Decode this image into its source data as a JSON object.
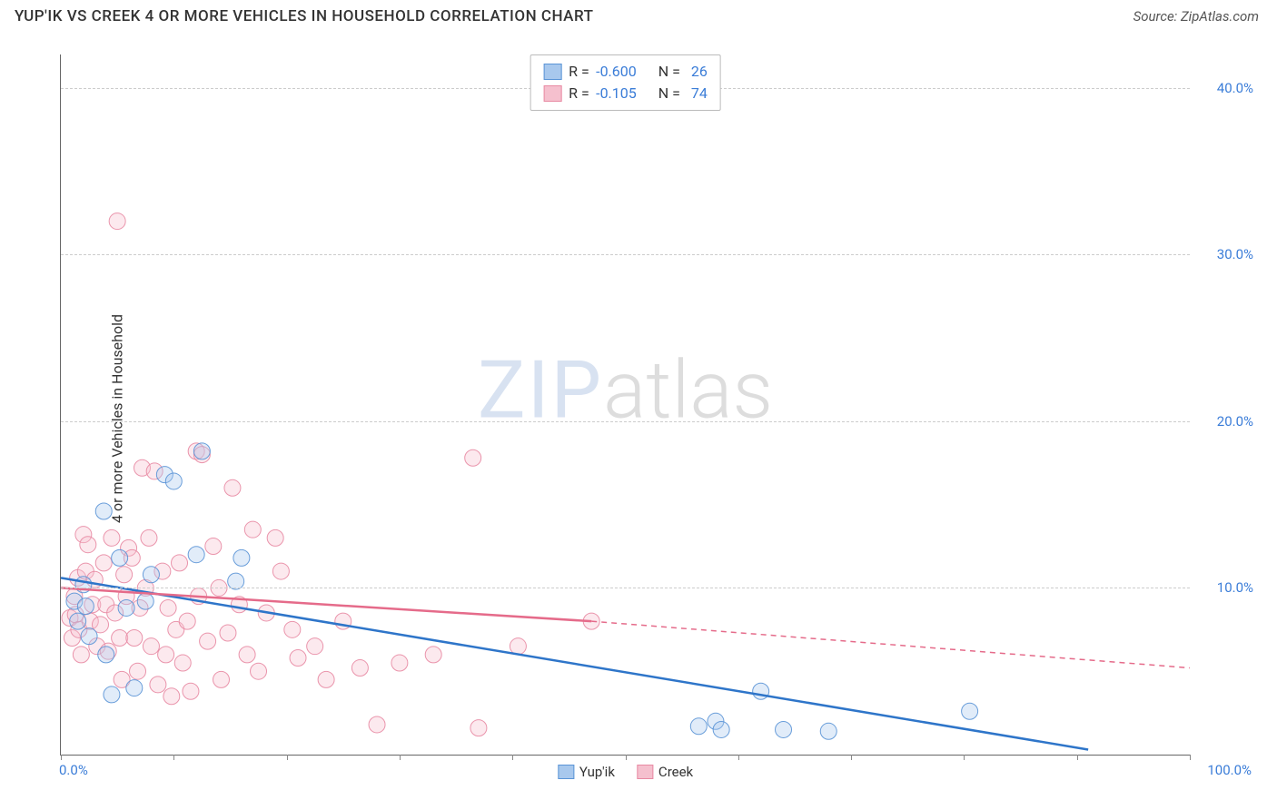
{
  "header": {
    "title": "YUP'IK VS CREEK 4 OR MORE VEHICLES IN HOUSEHOLD CORRELATION CHART",
    "source_prefix": "Source: ",
    "source_name": "ZipAtlas.com"
  },
  "chart": {
    "type": "scatter",
    "ylabel": "4 or more Vehicles in Household",
    "xlim": [
      0,
      100
    ],
    "ylim": [
      0,
      42
    ],
    "yticks": [
      10,
      20,
      30,
      40
    ],
    "ytick_labels": [
      "10.0%",
      "20.0%",
      "30.0%",
      "40.0%"
    ],
    "xticks": [
      0,
      10,
      20,
      30,
      40,
      50,
      60,
      70,
      80,
      90,
      100
    ],
    "xtick_labels_left": "0.0%",
    "xtick_labels_right": "100.0%",
    "background_color": "#ffffff",
    "grid_color": "#cccccc",
    "axis_color": "#666666",
    "marker_radius": 9,
    "marker_opacity": 0.35,
    "marker_stroke_opacity": 0.9,
    "line_width": 2.5,
    "series": [
      {
        "name": "Yup'ik",
        "color_fill": "#a8c8ed",
        "color_stroke": "#5a94d6",
        "line_color": "#2e75c9",
        "R": "-0.600",
        "N": "26",
        "regression": {
          "x1": 0,
          "y1": 10.6,
          "x2": 91,
          "y2": 0.3
        },
        "regression_dashed": null,
        "points": [
          [
            1.2,
            9.2
          ],
          [
            1.5,
            8.0
          ],
          [
            2.0,
            10.2
          ],
          [
            2.2,
            8.9
          ],
          [
            2.5,
            7.1
          ],
          [
            3.8,
            14.6
          ],
          [
            4.0,
            6.0
          ],
          [
            4.5,
            3.6
          ],
          [
            5.2,
            11.8
          ],
          [
            5.8,
            8.8
          ],
          [
            6.5,
            4.0
          ],
          [
            7.5,
            9.2
          ],
          [
            8.0,
            10.8
          ],
          [
            9.2,
            16.8
          ],
          [
            10.0,
            16.4
          ],
          [
            12.0,
            12.0
          ],
          [
            12.5,
            18.2
          ],
          [
            15.5,
            10.4
          ],
          [
            16.0,
            11.8
          ],
          [
            56.5,
            1.7
          ],
          [
            58.0,
            2.0
          ],
          [
            58.5,
            1.5
          ],
          [
            62.0,
            3.8
          ],
          [
            64.0,
            1.5
          ],
          [
            68.0,
            1.4
          ],
          [
            80.5,
            2.6
          ]
        ]
      },
      {
        "name": "Creek",
        "color_fill": "#f5c0ce",
        "color_stroke": "#e88aa3",
        "line_color": "#e56b8a",
        "R": "-0.105",
        "N": "74",
        "regression": {
          "x1": 0,
          "y1": 10.0,
          "x2": 47,
          "y2": 8.0
        },
        "regression_dashed": {
          "x1": 47,
          "y1": 8.0,
          "x2": 100,
          "y2": 5.2
        },
        "points": [
          [
            0.8,
            8.2
          ],
          [
            1.0,
            7.0
          ],
          [
            1.2,
            9.5
          ],
          [
            1.3,
            8.4
          ],
          [
            1.5,
            10.6
          ],
          [
            1.6,
            7.5
          ],
          [
            1.8,
            6.0
          ],
          [
            2.0,
            13.2
          ],
          [
            2.2,
            11.0
          ],
          [
            2.4,
            12.6
          ],
          [
            2.6,
            8.0
          ],
          [
            2.8,
            9.0
          ],
          [
            3.0,
            10.5
          ],
          [
            3.2,
            6.5
          ],
          [
            3.5,
            7.8
          ],
          [
            3.8,
            11.5
          ],
          [
            4.0,
            9.0
          ],
          [
            4.2,
            6.2
          ],
          [
            4.5,
            13.0
          ],
          [
            4.8,
            8.5
          ],
          [
            5.0,
            32.0
          ],
          [
            5.2,
            7.0
          ],
          [
            5.4,
            4.5
          ],
          [
            5.6,
            10.8
          ],
          [
            5.8,
            9.5
          ],
          [
            6.0,
            12.4
          ],
          [
            6.3,
            11.8
          ],
          [
            6.5,
            7.0
          ],
          [
            6.8,
            5.0
          ],
          [
            7.0,
            8.8
          ],
          [
            7.2,
            17.2
          ],
          [
            7.5,
            10.0
          ],
          [
            7.8,
            13.0
          ],
          [
            8.0,
            6.5
          ],
          [
            8.3,
            17.0
          ],
          [
            8.6,
            4.2
          ],
          [
            9.0,
            11.0
          ],
          [
            9.3,
            6.0
          ],
          [
            9.5,
            8.8
          ],
          [
            9.8,
            3.5
          ],
          [
            10.2,
            7.5
          ],
          [
            10.5,
            11.5
          ],
          [
            10.8,
            5.5
          ],
          [
            11.2,
            8.0
          ],
          [
            11.5,
            3.8
          ],
          [
            12.0,
            18.2
          ],
          [
            12.2,
            9.5
          ],
          [
            12.5,
            18.0
          ],
          [
            13.0,
            6.8
          ],
          [
            13.5,
            12.5
          ],
          [
            14.0,
            10.0
          ],
          [
            14.2,
            4.5
          ],
          [
            14.8,
            7.3
          ],
          [
            15.2,
            16.0
          ],
          [
            15.8,
            9.0
          ],
          [
            16.5,
            6.0
          ],
          [
            17.0,
            13.5
          ],
          [
            17.5,
            5.0
          ],
          [
            18.2,
            8.5
          ],
          [
            19.0,
            13.0
          ],
          [
            19.5,
            11.0
          ],
          [
            20.5,
            7.5
          ],
          [
            21.0,
            5.8
          ],
          [
            22.5,
            6.5
          ],
          [
            23.5,
            4.5
          ],
          [
            25.0,
            8.0
          ],
          [
            26.5,
            5.2
          ],
          [
            28.0,
            1.8
          ],
          [
            30.0,
            5.5
          ],
          [
            33.0,
            6.0
          ],
          [
            36.5,
            17.8
          ],
          [
            37.0,
            1.6
          ],
          [
            40.5,
            6.5
          ],
          [
            47.0,
            8.0
          ]
        ]
      }
    ],
    "bottom_legend": [
      {
        "label": "Yup'ik",
        "fill": "#a8c8ed",
        "stroke": "#5a94d6"
      },
      {
        "label": "Creek",
        "fill": "#f5c0ce",
        "stroke": "#e88aa3"
      }
    ],
    "watermark": {
      "part1": "ZIP",
      "part2": "atlas"
    }
  }
}
